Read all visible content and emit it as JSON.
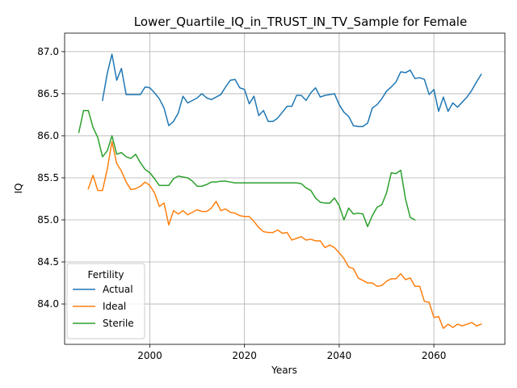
{
  "chart_data": {
    "type": "line",
    "title": "Lower_Quartile_IQ_in_TRUST_IN_TV_Sample for Female",
    "xlabel": "Years",
    "ylabel": "IQ",
    "xlim": [
      1982,
      2075
    ],
    "ylim": [
      83.52,
      87.22
    ],
    "x_ticks": [
      2000,
      2020,
      2040,
      2060
    ],
    "y_ticks": [
      84.0,
      84.5,
      85.0,
      85.5,
      86.0,
      86.5,
      87.0
    ],
    "x_tick_labels": [
      "2000",
      "2020",
      "2040",
      "2060"
    ],
    "y_tick_labels": [
      "84.0",
      "84.5",
      "85.0",
      "85.5",
      "86.0",
      "86.5",
      "87.0"
    ],
    "grid": true,
    "legend": {
      "title": "Fertility",
      "position": "lower-left"
    },
    "series": [
      {
        "name": "Actual",
        "color": "#1f77b4",
        "x": [
          1990,
          1991,
          1992,
          1993,
          1994,
          1995,
          1996,
          1997,
          1998,
          1999,
          2000,
          2001,
          2002,
          2003,
          2004,
          2005,
          2006,
          2007,
          2008,
          2009,
          2010,
          2011,
          2012,
          2013,
          2014,
          2015,
          2016,
          2017,
          2018,
          2019,
          2020,
          2021,
          2022,
          2023,
          2024,
          2025,
          2026,
          2027,
          2028,
          2029,
          2030,
          2031,
          2032,
          2033,
          2034,
          2035,
          2036,
          2037,
          2038,
          2039,
          2040,
          2041,
          2042,
          2043,
          2044,
          2045,
          2046,
          2047,
          2048,
          2049,
          2050,
          2051,
          2052,
          2053,
          2054,
          2055,
          2056,
          2057,
          2058,
          2059,
          2060,
          2061,
          2062,
          2063,
          2064,
          2065,
          2066,
          2067,
          2068,
          2069,
          2070
        ],
        "values": [
          86.42,
          86.74,
          86.97,
          86.66,
          86.8,
          86.49,
          86.49,
          86.49,
          86.49,
          86.58,
          86.57,
          86.51,
          86.44,
          86.33,
          86.12,
          86.17,
          86.27,
          86.47,
          86.39,
          86.42,
          86.45,
          86.5,
          86.45,
          86.43,
          86.46,
          86.49,
          86.58,
          86.66,
          86.67,
          86.57,
          86.55,
          86.38,
          86.47,
          86.24,
          86.3,
          86.17,
          86.17,
          86.21,
          86.28,
          86.35,
          86.35,
          86.48,
          86.48,
          86.42,
          86.51,
          86.57,
          86.46,
          86.48,
          86.49,
          86.5,
          86.37,
          86.28,
          86.23,
          86.12,
          86.11,
          86.11,
          86.15,
          86.33,
          86.37,
          86.44,
          86.53,
          86.58,
          86.64,
          86.76,
          86.75,
          86.78,
          86.68,
          86.69,
          86.67,
          86.49,
          86.55,
          86.29,
          86.46,
          86.29,
          86.39,
          86.34,
          86.4,
          86.46,
          86.54,
          86.64,
          86.73
        ]
      },
      {
        "name": "Ideal",
        "color": "#ff7f0e",
        "x": [
          1987,
          1988,
          1989,
          1990,
          1991,
          1992,
          1993,
          1994,
          1995,
          1996,
          1997,
          1998,
          1999,
          2000,
          2001,
          2002,
          2003,
          2004,
          2005,
          2006,
          2007,
          2008,
          2009,
          2010,
          2011,
          2012,
          2013,
          2014,
          2015,
          2016,
          2017,
          2018,
          2019,
          2020,
          2021,
          2022,
          2023,
          2024,
          2025,
          2026,
          2027,
          2028,
          2029,
          2030,
          2031,
          2032,
          2033,
          2034,
          2035,
          2036,
          2037,
          2038,
          2039,
          2040,
          2041,
          2042,
          2043,
          2044,
          2045,
          2046,
          2047,
          2048,
          2049,
          2050,
          2051,
          2052,
          2053,
          2054,
          2055,
          2056,
          2057,
          2058,
          2059,
          2060,
          2061,
          2062,
          2063,
          2064,
          2065,
          2066,
          2067,
          2068,
          2069,
          2070
        ],
        "values": [
          85.37,
          85.53,
          85.35,
          85.35,
          85.6,
          85.93,
          85.67,
          85.58,
          85.45,
          85.36,
          85.37,
          85.4,
          85.45,
          85.41,
          85.32,
          85.16,
          85.2,
          84.94,
          85.11,
          85.07,
          85.11,
          85.06,
          85.09,
          85.12,
          85.1,
          85.1,
          85.14,
          85.22,
          85.11,
          85.13,
          85.09,
          85.08,
          85.05,
          85.04,
          85.04,
          84.98,
          84.91,
          84.86,
          84.85,
          84.85,
          84.88,
          84.84,
          84.85,
          84.76,
          84.78,
          84.8,
          84.76,
          84.77,
          84.75,
          84.75,
          84.67,
          84.7,
          84.67,
          84.61,
          84.54,
          84.44,
          84.42,
          84.31,
          84.28,
          84.25,
          84.25,
          84.21,
          84.22,
          84.27,
          84.3,
          84.3,
          84.36,
          84.29,
          84.31,
          84.21,
          84.21,
          84.03,
          84.02,
          83.84,
          83.85,
          83.71,
          83.76,
          83.72,
          83.76,
          83.74,
          83.76,
          83.78,
          83.74,
          83.76
        ]
      },
      {
        "name": "Sterile",
        "color": "#2ca02c",
        "x": [
          1985,
          1986,
          1987,
          1988,
          1989,
          1990,
          1991,
          1992,
          1993,
          1994,
          1995,
          1996,
          1997,
          1998,
          1999,
          2000,
          2001,
          2002,
          2003,
          2004,
          2005,
          2006,
          2007,
          2008,
          2009,
          2010,
          2011,
          2012,
          2013,
          2014,
          2015,
          2016,
          2017,
          2018,
          2019,
          2020,
          2021,
          2022,
          2023,
          2024,
          2025,
          2026,
          2027,
          2028,
          2029,
          2030,
          2031,
          2032,
          2033,
          2034,
          2035,
          2036,
          2037,
          2038,
          2039,
          2040,
          2041,
          2042,
          2043,
          2044,
          2045,
          2046,
          2047,
          2048,
          2049,
          2050,
          2051,
          2052,
          2053,
          2054,
          2055,
          2056
        ],
        "values": [
          86.04,
          86.3,
          86.3,
          86.1,
          85.98,
          85.75,
          85.82,
          86.0,
          85.78,
          85.8,
          85.75,
          85.73,
          85.78,
          85.68,
          85.6,
          85.56,
          85.49,
          85.41,
          85.41,
          85.41,
          85.49,
          85.52,
          85.51,
          85.5,
          85.46,
          85.4,
          85.4,
          85.42,
          85.45,
          85.45,
          85.46,
          85.46,
          85.45,
          85.44,
          85.44,
          85.44,
          85.44,
          85.44,
          85.44,
          85.44,
          85.44,
          85.44,
          85.44,
          85.44,
          85.44,
          85.44,
          85.44,
          85.43,
          85.38,
          85.35,
          85.26,
          85.21,
          85.2,
          85.2,
          85.26,
          85.17,
          85.0,
          85.14,
          85.07,
          85.08,
          85.07,
          84.92,
          85.05,
          85.15,
          85.18,
          85.32,
          85.56,
          85.55,
          85.59,
          85.25,
          85.03,
          85.0
        ]
      }
    ]
  }
}
